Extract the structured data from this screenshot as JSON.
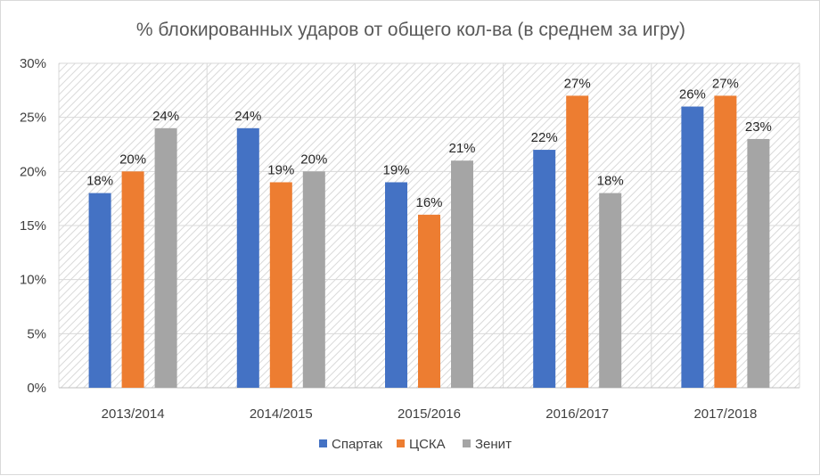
{
  "chart_data": {
    "type": "bar",
    "title": "% блокированных ударов от общего кол-ва (в среднем за игру)",
    "categories": [
      "2013/2014",
      "2014/2015",
      "2015/2016",
      "2016/2017",
      "2017/2018"
    ],
    "series": [
      {
        "name": "Спартак",
        "color": "#4472c4",
        "values": [
          18,
          24,
          19,
          22,
          26
        ],
        "labels": [
          "18%",
          "24%",
          "19%",
          "22%",
          "26%"
        ]
      },
      {
        "name": "ЦСКА",
        "color": "#ed7d31",
        "values": [
          20,
          19,
          16,
          27,
          27
        ],
        "labels": [
          "20%",
          "19%",
          "16%",
          "27%",
          "27%"
        ]
      },
      {
        "name": "Зенит",
        "color": "#a5a5a5",
        "values": [
          24,
          20,
          21,
          18,
          23
        ],
        "labels": [
          "24%",
          "20%",
          "21%",
          "18%",
          "23%"
        ]
      }
    ],
    "ylim": [
      0,
      30
    ],
    "yticks": [
      0,
      5,
      10,
      15,
      20,
      25,
      30
    ],
    "ytick_labels": [
      "0%",
      "5%",
      "10%",
      "15%",
      "20%",
      "25%",
      "30%"
    ],
    "xlabel": "",
    "ylabel": "",
    "grid": true,
    "legend_position": "bottom",
    "plot_background": "hatched light gray diagonal"
  }
}
